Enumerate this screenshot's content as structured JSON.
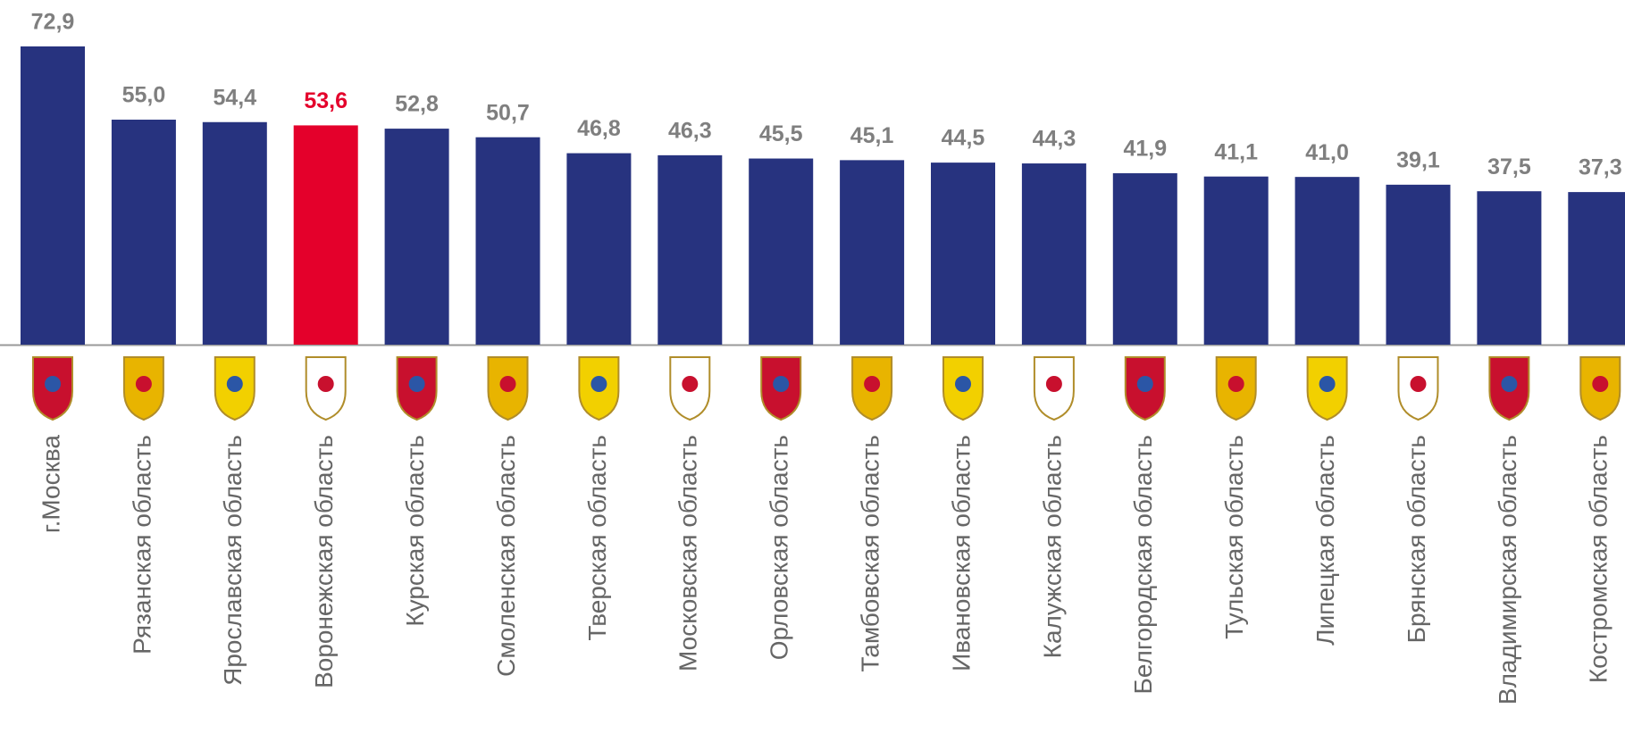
{
  "chart_data": {
    "type": "bar",
    "categories": [
      "г.Москва",
      "Рязанская область",
      "Ярославская область",
      "Воронежская область",
      "Курская область",
      "Смоленская область",
      "Тверская область",
      "Московская область",
      "Орловская область",
      "Тамбовская область",
      "Ивановская область",
      "Калужская область",
      "Белгородская область",
      "Тульская область",
      "Липецкая область",
      "Брянская область",
      "Владимирская область",
      "Костромская область"
    ],
    "values": [
      72.9,
      55.0,
      54.4,
      53.6,
      52.8,
      50.7,
      46.8,
      46.3,
      45.5,
      45.1,
      44.5,
      44.3,
      41.9,
      41.1,
      41.0,
      39.1,
      37.5,
      37.3
    ],
    "value_labels": [
      "72,9",
      "55,0",
      "54,4",
      "53,6",
      "52,8",
      "50,7",
      "46,8",
      "46,3",
      "45,5",
      "45,1",
      "44,5",
      "44,3",
      "41,9",
      "41,1",
      "41,0",
      "39,1",
      "37,5",
      "37,3"
    ],
    "colors": [
      "#27337f",
      "#27337f",
      "#27337f",
      "#e4002b",
      "#27337f",
      "#27337f",
      "#27337f",
      "#27337f",
      "#27337f",
      "#27337f",
      "#27337f",
      "#27337f",
      "#27337f",
      "#27337f",
      "#27337f",
      "#27337f",
      "#27337f",
      "#27337f"
    ]
  }
}
